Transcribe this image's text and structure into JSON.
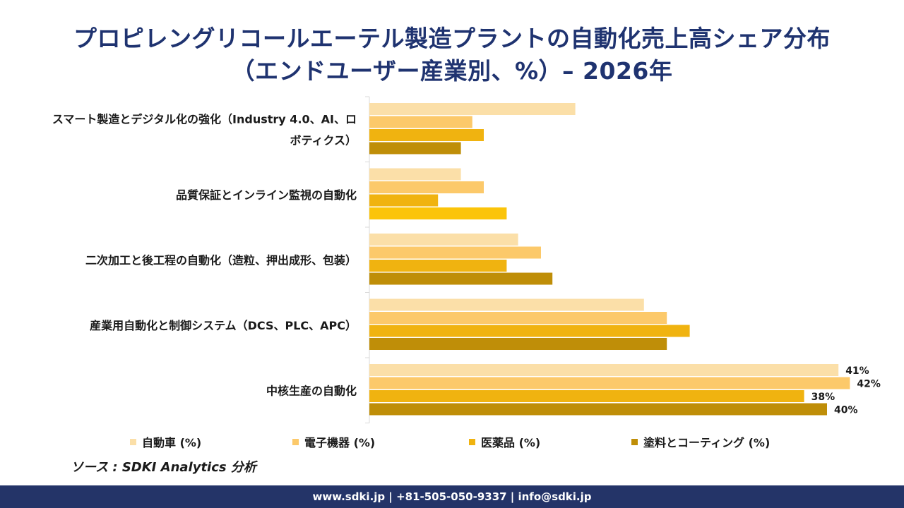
{
  "title_line1": "プロピレングリコールエーテル製造プラントの自動化売上高シェア分布",
  "title_line2": "（エンドユーザー産業別、%）– 2026年",
  "source": "ソース : SDKI Analytics 分析",
  "footer": "www.sdki.jp | +81-505-050-9337 | info@sdki.jp",
  "chart_data": {
    "type": "bar",
    "orientation": "horizontal",
    "title": "プロピレングリコールエーテル製造プラントの自動化売上高シェア分布（エンドユーザー産業別、%）– 2026年",
    "categories": [
      "スマート製造とデジタル化の強化（Industry 4.0、AI、ロボティクス）",
      "品質保証とインライン監視の自動化",
      "二次加工と後工程の自動化（造粒、押出成形、包装）",
      "産業用自動化と制御システム（DCS、PLC、APC）",
      "中核生産の自動化"
    ],
    "category_label_lines": [
      [
        "スマート製造とデジタル化の強化（Industry 4.0、AI、ロ",
        "ボティクス）"
      ],
      [
        "品質保証とインライン監視の自動化"
      ],
      [
        "二次加工と後工程の自動化（造粒、押出成形、包装）"
      ],
      [
        "産業用自動化と制御システム（DCS、PLC、APC）"
      ],
      [
        "中核生産の自動化"
      ]
    ],
    "series": [
      {
        "name": "自動車 (%)",
        "color": "#fbdfa8",
        "values": [
          18,
          8,
          13,
          24,
          41
        ]
      },
      {
        "name": "電子機器 (%)",
        "color": "#fcc96a",
        "values": [
          9,
          10,
          15,
          26,
          42
        ]
      },
      {
        "name": "医薬品 (%)",
        "color": "#f0b310",
        "values": [
          10,
          6,
          12,
          28,
          38
        ]
      },
      {
        "name": "塗料とコーティング (%)",
        "color": "#bf8e08",
        "values": [
          8,
          12,
          16,
          26,
          40
        ]
      }
    ],
    "highlight": {
      "category_index": 1,
      "series_index": 3,
      "color": "#fbc40a"
    },
    "data_labels": {
      "category_index": 4,
      "texts": [
        "41%",
        "42%",
        "38%",
        "40%"
      ]
    },
    "legend_position": "bottom",
    "grid": false
  }
}
